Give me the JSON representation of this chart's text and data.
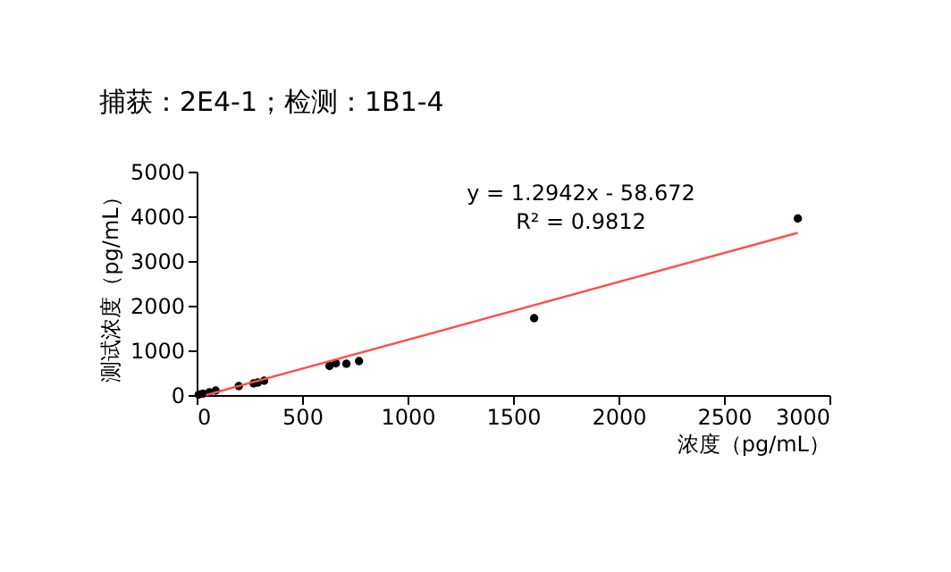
{
  "chart_data": {
    "type": "scatter",
    "title": "捕获：2E4-1；检测：1B1-4",
    "xlabel": "浓度（pg/mL）",
    "ylabel": "测试浓度（pg/mL）",
    "annotations": [
      "y = 1.2942x - 58.672",
      "R² = 0.9812"
    ],
    "xlim": [
      0,
      3000
    ],
    "xticks": [
      0,
      500,
      1000,
      1500,
      2000,
      2500,
      3000
    ],
    "ylim": [
      0,
      5000
    ],
    "yticks": [
      0,
      1000,
      2000,
      3000,
      4000,
      5000
    ],
    "grid": false,
    "marker": "circle",
    "series": [
      {
        "color": "#000000",
        "x": [
          10,
          30,
          60,
          90,
          200,
          270,
          290,
          320,
          630,
          660,
          710,
          770,
          1600,
          2850
        ],
        "values": [
          10,
          30,
          60,
          100,
          200,
          260,
          280,
          320,
          650,
          710,
          700,
          760,
          1720,
          3950
        ]
      },
      {
        "type": "line",
        "color": "#ff4d4d",
        "line_style": "solid",
        "marker": "none",
        "x": [
          45,
          2850
        ],
        "values": [
          0,
          3630
        ]
      }
    ]
  }
}
